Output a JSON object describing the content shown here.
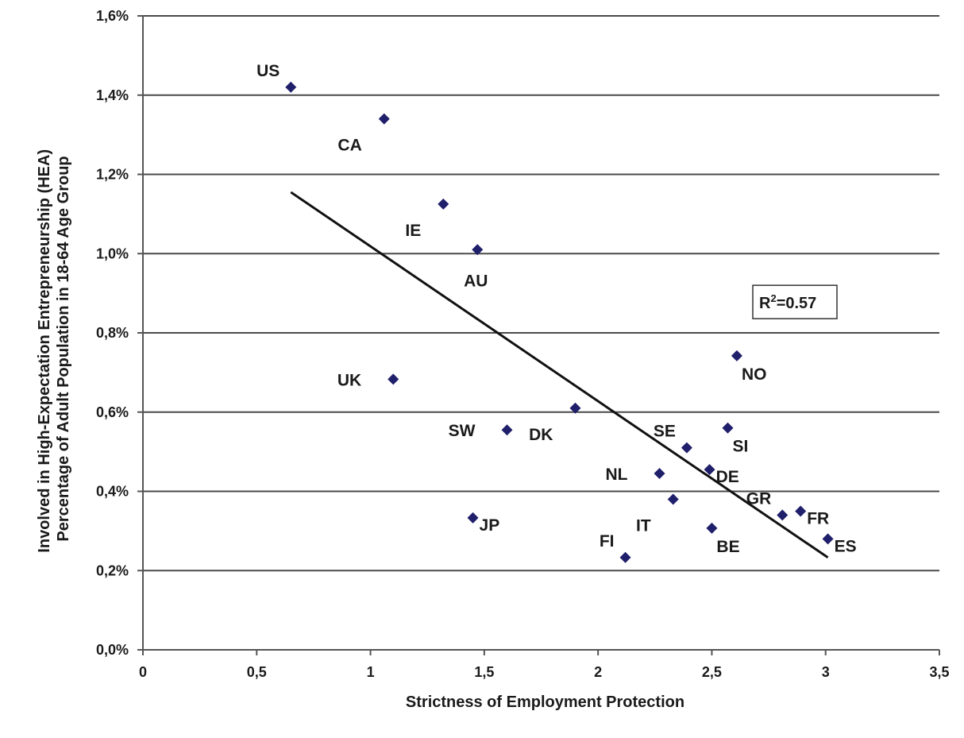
{
  "chart_data": {
    "type": "scatter",
    "xlabel": "Strictness of Employment Protection",
    "ylabel_lines": [
      "Involved in High-Expectation Entrepreneurship (HEA)",
      "Percentage of Adult Population in 18-64 Age Group"
    ],
    "xlim": [
      0,
      3.5
    ],
    "ylim": [
      0,
      1.6
    ],
    "x_ticks": [
      {
        "value": 0,
        "label": "0"
      },
      {
        "value": 0.5,
        "label": "0,5"
      },
      {
        "value": 1,
        "label": "1"
      },
      {
        "value": 1.5,
        "label": "1,5"
      },
      {
        "value": 2,
        "label": "2"
      },
      {
        "value": 2.5,
        "label": "2,5"
      },
      {
        "value": 3,
        "label": "3"
      },
      {
        "value": 3.5,
        "label": "3,5"
      }
    ],
    "y_ticks": [
      {
        "value": 0,
        "label": "0,0%"
      },
      {
        "value": 0.2,
        "label": "0,2%"
      },
      {
        "value": 0.4,
        "label": "0,4%"
      },
      {
        "value": 0.6,
        "label": "0,6%"
      },
      {
        "value": 0.8,
        "label": "0,8%"
      },
      {
        "value": 1.0,
        "label": "1,0%"
      },
      {
        "value": 1.2,
        "label": "1,2%"
      },
      {
        "value": 1.4,
        "label": "1,4%"
      },
      {
        "value": 1.6,
        "label": "1,6%"
      }
    ],
    "grid": "horizontal",
    "marker_color": "#1f1f6b",
    "points": [
      {
        "label": "US",
        "x": 0.65,
        "y": 1.42,
        "label_pos": "above-left"
      },
      {
        "label": "CA",
        "x": 1.06,
        "y": 1.34,
        "label_pos": "below-left"
      },
      {
        "label": "IE",
        "x": 1.32,
        "y": 1.125,
        "label_pos": "below-left"
      },
      {
        "label": "AU",
        "x": 1.47,
        "y": 1.01,
        "label_pos": "below"
      },
      {
        "label": "UK",
        "x": 1.1,
        "y": 0.683,
        "label_pos": "left"
      },
      {
        "label": "SW",
        "x": 1.6,
        "y": 0.555,
        "label_pos": "left"
      },
      {
        "label": "JP",
        "x": 1.45,
        "y": 0.333,
        "label_pos": "right"
      },
      {
        "label": "DK",
        "x": 1.9,
        "y": 0.61,
        "label_pos": "below-left"
      },
      {
        "label": "FI",
        "x": 2.12,
        "y": 0.233,
        "label_pos": "above-left"
      },
      {
        "label": "NL",
        "x": 2.27,
        "y": 0.445,
        "label_pos": "left"
      },
      {
        "label": "IT",
        "x": 2.33,
        "y": 0.38,
        "label_pos": "below-left"
      },
      {
        "label": "SE",
        "x": 2.39,
        "y": 0.51,
        "label_pos": "above-left"
      },
      {
        "label": "DE",
        "x": 2.49,
        "y": 0.455,
        "label_pos": "right"
      },
      {
        "label": "BE",
        "x": 2.5,
        "y": 0.307,
        "label_pos": "below-right"
      },
      {
        "label": "SI",
        "x": 2.57,
        "y": 0.56,
        "label_pos": "below-right"
      },
      {
        "label": "NO",
        "x": 2.61,
        "y": 0.742,
        "label_pos": "below-right"
      },
      {
        "label": "GR",
        "x": 2.81,
        "y": 0.34,
        "label_pos": "above-left"
      },
      {
        "label": "FR",
        "x": 2.89,
        "y": 0.35,
        "label_pos": "right"
      },
      {
        "label": "ES",
        "x": 3.01,
        "y": 0.28,
        "label_pos": "right"
      }
    ],
    "trendline": {
      "x1": 0.65,
      "y1": 1.155,
      "x2": 3.01,
      "y2": 0.233
    },
    "annotation": {
      "prefix": "R",
      "superscript": "2",
      "suffix": "=0.57",
      "x": 2.68,
      "y": 0.92
    }
  }
}
